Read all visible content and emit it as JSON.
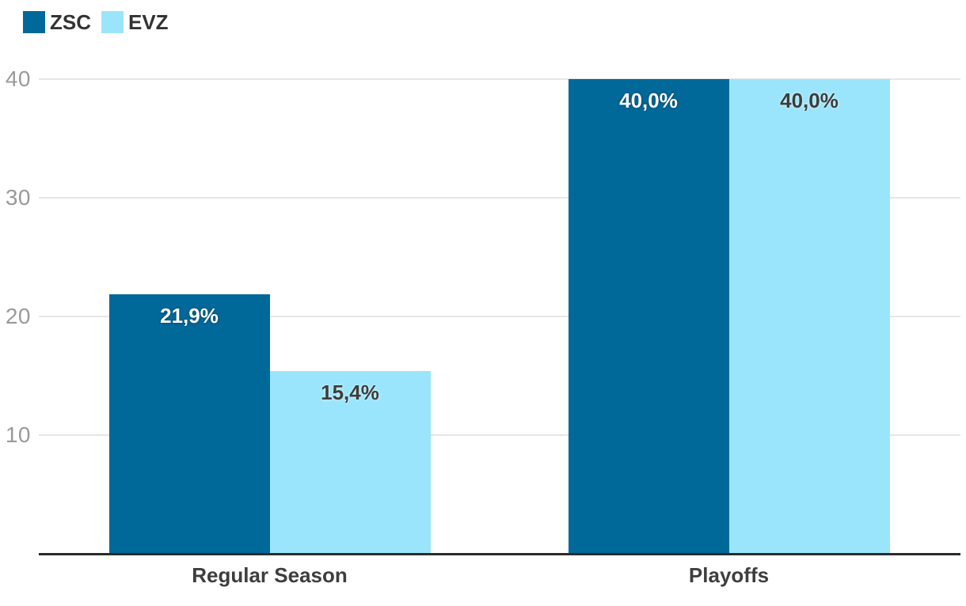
{
  "chart_data": {
    "type": "bar",
    "categories": [
      "Regular Season",
      "Playoffs"
    ],
    "series": [
      {
        "name": "ZSC",
        "color": "#00699a",
        "values": [
          21.9,
          40.0
        ],
        "data_labels": [
          "21,9%",
          "40,0%"
        ],
        "label_style": "on-dark"
      },
      {
        "name": "EVZ",
        "color": "#9be5fc",
        "values": [
          15.4,
          40.0
        ],
        "data_labels": [
          "15,4%",
          "40,0%"
        ],
        "label_style": "on-light"
      }
    ],
    "yticks": [
      10,
      20,
      30,
      40
    ],
    "ylim": [
      0,
      40
    ],
    "grid": true,
    "legend_position": "top-left"
  },
  "colors": {
    "background": "#ffffff",
    "gridline": "#e6e6e6",
    "axis_line": "#2b2b2b",
    "ytick_label": "#9a9a9a",
    "category_label": "#3e3e3e",
    "legend_label": "#333333"
  }
}
